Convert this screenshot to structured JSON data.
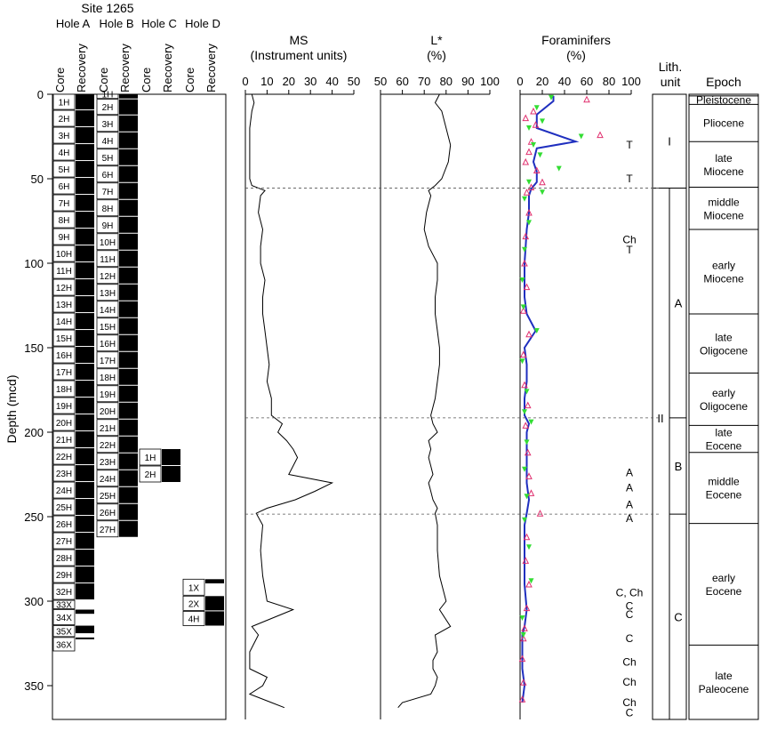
{
  "site_title": "Site 1265",
  "depth_axis": {
    "label": "Depth (mcd)",
    "ticks": [
      0,
      50,
      100,
      150,
      200,
      250,
      300,
      350
    ],
    "range": [
      0,
      370
    ]
  },
  "holes": [
    {
      "name": "Hole A",
      "core_label": "Core",
      "recovery_label": "Recovery",
      "cores": [
        {
          "id": "1H",
          "top": 0,
          "bot": 9.5,
          "rec": 9.5
        },
        {
          "id": "2H",
          "top": 9.5,
          "bot": 19.5,
          "rec": 10
        },
        {
          "id": "3H",
          "top": 19.5,
          "bot": 29.5,
          "rec": 10
        },
        {
          "id": "4H",
          "top": 29.5,
          "bot": 39.5,
          "rec": 10
        },
        {
          "id": "5H",
          "top": 39.5,
          "bot": 49.5,
          "rec": 10
        },
        {
          "id": "6H",
          "top": 49.5,
          "bot": 59.5,
          "rec": 10
        },
        {
          "id": "7H",
          "top": 59.5,
          "bot": 69.5,
          "rec": 10
        },
        {
          "id": "8H",
          "top": 69.5,
          "bot": 79.5,
          "rec": 10
        },
        {
          "id": "9H",
          "top": 79.5,
          "bot": 89.5,
          "rec": 10
        },
        {
          "id": "10H",
          "top": 89.5,
          "bot": 99.5,
          "rec": 10
        },
        {
          "id": "11H",
          "top": 99.5,
          "bot": 109.5,
          "rec": 10
        },
        {
          "id": "12H",
          "top": 109.5,
          "bot": 119.5,
          "rec": 10
        },
        {
          "id": "13H",
          "top": 119.5,
          "bot": 129.5,
          "rec": 10
        },
        {
          "id": "14H",
          "top": 129.5,
          "bot": 139.5,
          "rec": 10
        },
        {
          "id": "15H",
          "top": 139.5,
          "bot": 149.5,
          "rec": 10
        },
        {
          "id": "16H",
          "top": 149.5,
          "bot": 159.5,
          "rec": 10
        },
        {
          "id": "17H",
          "top": 159.5,
          "bot": 169.5,
          "rec": 10
        },
        {
          "id": "18H",
          "top": 169.5,
          "bot": 179.5,
          "rec": 10
        },
        {
          "id": "19H",
          "top": 179.5,
          "bot": 189.5,
          "rec": 10
        },
        {
          "id": "20H",
          "top": 189.5,
          "bot": 199.5,
          "rec": 10
        },
        {
          "id": "21H",
          "top": 199.5,
          "bot": 209.5,
          "rec": 10
        },
        {
          "id": "22H",
          "top": 209.5,
          "bot": 219.5,
          "rec": 10
        },
        {
          "id": "23H",
          "top": 219.5,
          "bot": 229.5,
          "rec": 10
        },
        {
          "id": "24H",
          "top": 229.5,
          "bot": 239.5,
          "rec": 10
        },
        {
          "id": "25H",
          "top": 239.5,
          "bot": 249.5,
          "rec": 10
        },
        {
          "id": "26H",
          "top": 249.5,
          "bot": 259.5,
          "rec": 10
        },
        {
          "id": "27H",
          "top": 259.5,
          "bot": 269.5,
          "rec": 10
        },
        {
          "id": "28H",
          "top": 269.5,
          "bot": 279.5,
          "rec": 10
        },
        {
          "id": "29H",
          "top": 279.5,
          "bot": 289.5,
          "rec": 10
        },
        {
          "id": "32H",
          "top": 289.5,
          "bot": 299.5,
          "rec": 10
        },
        {
          "id": "33X",
          "top": 299.5,
          "bot": 305,
          "rec": 0
        },
        {
          "id": "34X",
          "top": 305,
          "bot": 314.5,
          "rec": 3
        },
        {
          "id": "35X",
          "top": 314.5,
          "bot": 321.5,
          "rec": 5
        },
        {
          "id": "36X",
          "top": 321.5,
          "bot": 330,
          "rec": 1
        }
      ]
    },
    {
      "name": "Hole B",
      "core_label": "Core",
      "recovery_label": "Recovery",
      "cores": [
        {
          "id": "1H",
          "top": 0,
          "bot": 3,
          "rec": 3
        },
        {
          "id": "2H",
          "top": 3,
          "bot": 12.5,
          "rec": 9.5
        },
        {
          "id": "3H",
          "top": 12.5,
          "bot": 22.5,
          "rec": 10
        },
        {
          "id": "4H",
          "top": 22.5,
          "bot": 32.5,
          "rec": 10
        },
        {
          "id": "5H",
          "top": 32.5,
          "bot": 42.5,
          "rec": 10
        },
        {
          "id": "6H",
          "top": 42.5,
          "bot": 52.5,
          "rec": 10
        },
        {
          "id": "7H",
          "top": 52.5,
          "bot": 62.5,
          "rec": 10
        },
        {
          "id": "8H",
          "top": 62.5,
          "bot": 72.5,
          "rec": 10
        },
        {
          "id": "9H",
          "top": 72.5,
          "bot": 82.5,
          "rec": 10
        },
        {
          "id": "10H",
          "top": 82.5,
          "bot": 92.5,
          "rec": 10
        },
        {
          "id": "11H",
          "top": 92.5,
          "bot": 102.5,
          "rec": 10
        },
        {
          "id": "12H",
          "top": 102.5,
          "bot": 112.5,
          "rec": 10
        },
        {
          "id": "13H",
          "top": 112.5,
          "bot": 122.5,
          "rec": 10
        },
        {
          "id": "14H",
          "top": 122.5,
          "bot": 132.5,
          "rec": 10
        },
        {
          "id": "15H",
          "top": 132.5,
          "bot": 142.5,
          "rec": 10
        },
        {
          "id": "16H",
          "top": 142.5,
          "bot": 152.5,
          "rec": 10
        },
        {
          "id": "17H",
          "top": 152.5,
          "bot": 162.5,
          "rec": 10
        },
        {
          "id": "18H",
          "top": 162.5,
          "bot": 172.5,
          "rec": 10
        },
        {
          "id": "19H",
          "top": 172.5,
          "bot": 182.5,
          "rec": 10
        },
        {
          "id": "20H",
          "top": 182.5,
          "bot": 192.5,
          "rec": 10
        },
        {
          "id": "21H",
          "top": 192.5,
          "bot": 202.5,
          "rec": 10
        },
        {
          "id": "22H",
          "top": 202.5,
          "bot": 212.5,
          "rec": 10
        },
        {
          "id": "23H",
          "top": 212.5,
          "bot": 222.5,
          "rec": 10
        },
        {
          "id": "24H",
          "top": 222.5,
          "bot": 232.5,
          "rec": 10
        },
        {
          "id": "25H",
          "top": 232.5,
          "bot": 242.5,
          "rec": 10
        },
        {
          "id": "26H",
          "top": 242.5,
          "bot": 252.5,
          "rec": 10
        },
        {
          "id": "27H",
          "top": 252.5,
          "bot": 262.5,
          "rec": 10
        }
      ]
    },
    {
      "name": "Hole C",
      "core_label": "Core",
      "recovery_label": "Recovery",
      "cores": [
        {
          "id": "1H",
          "top": 210,
          "bot": 220,
          "rec": 10
        },
        {
          "id": "2H",
          "top": 220,
          "bot": 230,
          "rec": 10
        }
      ]
    },
    {
      "name": "Hole D",
      "core_label": "Core",
      "recovery_label": "Recovery",
      "cores": [
        {
          "id": "1X",
          "top": 287,
          "bot": 297,
          "rec": 3
        },
        {
          "id": "2X",
          "top": 297,
          "bot": 306,
          "rec": 9
        },
        {
          "id": "4H",
          "top": 306,
          "bot": 315,
          "rec": 9
        }
      ]
    }
  ],
  "ms_panel": {
    "title": "MS",
    "subtitle": "(Instrument units)",
    "ticks": [
      0,
      10,
      20,
      30,
      40,
      50
    ]
  },
  "lstar_panel": {
    "title": "L*",
    "subtitle": "(%)",
    "ticks": [
      50,
      60,
      70,
      80,
      90,
      100
    ]
  },
  "foram_panel": {
    "title": "Foraminifers",
    "subtitle": "(%)",
    "ticks": [
      0,
      20,
      40,
      60,
      80,
      100
    ]
  },
  "chart_data": {
    "type": "line",
    "y_label": "Depth (mcd)",
    "series": [
      {
        "name": "MS",
        "y": [
          0,
          5,
          10,
          20,
          30,
          40,
          50,
          54,
          57,
          60,
          70,
          80,
          90,
          100,
          110,
          120,
          130,
          140,
          150,
          160,
          170,
          180,
          190,
          195,
          200,
          205,
          210,
          215,
          220,
          225,
          230,
          235,
          240,
          245,
          248,
          255,
          270,
          285,
          300,
          305,
          315,
          320,
          330,
          335,
          340,
          345,
          350,
          355,
          360,
          363
        ],
        "x": [
          3,
          4,
          3,
          2,
          2,
          2,
          2,
          3,
          9,
          7,
          6,
          8,
          7,
          7,
          9,
          8,
          8,
          9,
          10,
          11,
          10,
          12,
          12,
          17,
          15,
          19,
          22,
          24,
          22,
          20,
          40,
          32,
          23,
          10,
          5,
          8,
          7,
          8,
          10,
          22,
          3,
          6,
          2,
          2,
          2,
          10,
          8,
          2,
          12,
          18
        ]
      },
      {
        "name": "L*",
        "y": [
          0,
          5,
          10,
          20,
          30,
          40,
          50,
          54,
          57,
          60,
          70,
          80,
          90,
          100,
          110,
          120,
          130,
          140,
          150,
          160,
          170,
          180,
          190,
          195,
          200,
          205,
          210,
          215,
          220,
          225,
          230,
          235,
          240,
          245,
          248,
          255,
          270,
          285,
          300,
          305,
          315,
          320,
          330,
          335,
          340,
          345,
          350,
          355,
          360,
          363
        ],
        "x": [
          77,
          75,
          78,
          80,
          82,
          81,
          78,
          75,
          72,
          73,
          71,
          70,
          72,
          76,
          76,
          75,
          75,
          76,
          77,
          77,
          76,
          75,
          73,
          74,
          76,
          72,
          73,
          72,
          73,
          74,
          72,
          73,
          74,
          76,
          75,
          76,
          76,
          77,
          80,
          77,
          82,
          75,
          76,
          74,
          74,
          76,
          75,
          73,
          60,
          58
        ]
      },
      {
        "name": "Total",
        "y": [
          1,
          4,
          12,
          20,
          28,
          32,
          40,
          46,
          52,
          56,
          60,
          70,
          80,
          90,
          100,
          110,
          120,
          130,
          140,
          150,
          160,
          170,
          180,
          190,
          195,
          200,
          210,
          220,
          230,
          240,
          248,
          255,
          270,
          290,
          305,
          315,
          320,
          330,
          340,
          350,
          360
        ],
        "x": [
          30,
          30,
          15,
          15,
          50,
          15,
          12,
          15,
          15,
          10,
          8,
          8,
          6,
          5,
          4,
          4,
          4,
          6,
          14,
          4,
          6,
          6,
          4,
          4,
          8,
          6,
          6,
          6,
          6,
          8,
          6,
          4,
          4,
          4,
          6,
          4,
          2,
          2,
          2,
          4,
          2
        ]
      }
    ],
    "markers": {
      "red_triangles": [
        [
          60,
          3
        ],
        [
          12,
          10
        ],
        [
          5,
          14
        ],
        [
          14,
          18
        ],
        [
          72,
          24
        ],
        [
          10,
          28
        ],
        [
          8,
          34
        ],
        [
          5,
          40
        ],
        [
          15,
          45
        ],
        [
          20,
          52
        ],
        [
          10,
          55
        ],
        [
          6,
          58
        ],
        [
          8,
          70
        ],
        [
          5,
          84
        ],
        [
          4,
          100
        ],
        [
          6,
          114
        ],
        [
          3,
          128
        ],
        [
          8,
          142
        ],
        [
          3,
          154
        ],
        [
          4,
          172
        ],
        [
          7,
          184
        ],
        [
          5,
          196
        ],
        [
          7,
          212
        ],
        [
          8,
          226
        ],
        [
          10,
          236
        ],
        [
          18,
          248
        ],
        [
          6,
          262
        ],
        [
          5,
          276
        ],
        [
          8,
          290
        ],
        [
          6,
          304
        ],
        [
          4,
          316
        ],
        [
          3,
          322
        ],
        [
          2,
          334
        ],
        [
          3,
          348
        ],
        [
          2,
          358
        ]
      ],
      "green_triangles": [
        [
          28,
          2
        ],
        [
          15,
          8
        ],
        [
          20,
          16
        ],
        [
          8,
          20
        ],
        [
          55,
          25
        ],
        [
          12,
          30
        ],
        [
          18,
          36
        ],
        [
          35,
          44
        ],
        [
          8,
          52
        ],
        [
          20,
          58
        ],
        [
          4,
          62
        ],
        [
          8,
          76
        ],
        [
          4,
          92
        ],
        [
          2,
          110
        ],
        [
          3,
          126
        ],
        [
          15,
          140
        ],
        [
          2,
          158
        ],
        [
          6,
          176
        ],
        [
          4,
          188
        ],
        [
          10,
          194
        ],
        [
          6,
          206
        ],
        [
          4,
          222
        ],
        [
          6,
          238
        ],
        [
          4,
          252
        ],
        [
          8,
          268
        ],
        [
          10,
          288
        ],
        [
          2,
          310
        ],
        [
          3,
          320
        ]
      ]
    },
    "annotations": [
      {
        "text": "T",
        "depth": 30
      },
      {
        "text": "T",
        "depth": 50
      },
      {
        "text": "Ch",
        "depth": 86
      },
      {
        "text": "T",
        "depth": 92
      },
      {
        "text": "A",
        "depth": 224
      },
      {
        "text": "A",
        "depth": 233
      },
      {
        "text": "A",
        "depth": 243
      },
      {
        "text": "A",
        "depth": 251
      },
      {
        "text": "C, Ch",
        "depth": 295
      },
      {
        "text": "C",
        "depth": 303
      },
      {
        "text": "C",
        "depth": 308
      },
      {
        "text": "C",
        "depth": 322
      },
      {
        "text": "Ch",
        "depth": 336
      },
      {
        "text": "Ch",
        "depth": 348
      },
      {
        "text": "Ch",
        "depth": 360
      },
      {
        "text": "C",
        "depth": 366
      }
    ],
    "boundaries": [
      55.5,
      191.5,
      248.5
    ]
  },
  "lith_unit": {
    "title_line1": "Lith.",
    "title_line2": "unit",
    "units": [
      {
        "label": "I",
        "top": 0,
        "bot": 55.5
      },
      {
        "label": "II",
        "top": 55.5,
        "bot": 370
      },
      {
        "label": "A",
        "top": 55.5,
        "bot": 191.5
      },
      {
        "label": "B",
        "top": 191.5,
        "bot": 248.5
      },
      {
        "label": "C",
        "top": 248.5,
        "bot": 370
      }
    ]
  },
  "epoch": {
    "title": "Epoch",
    "items": [
      {
        "label1": "Pleistocene",
        "label2": "",
        "top": 1,
        "bot": 6
      },
      {
        "label1": "Pliocene",
        "label2": "",
        "top": 6,
        "bot": 28
      },
      {
        "label1": "late",
        "label2": "Miocene",
        "top": 28,
        "bot": 55
      },
      {
        "label1": "middle",
        "label2": "Miocene",
        "top": 55,
        "bot": 80
      },
      {
        "label1": "early",
        "label2": "Miocene",
        "top": 80,
        "bot": 130
      },
      {
        "label1": "late",
        "label2": "Oligocene",
        "top": 130,
        "bot": 165
      },
      {
        "label1": "early",
        "label2": "Oligocene",
        "top": 165,
        "bot": 196
      },
      {
        "label1": "late",
        "label2": "Eocene",
        "top": 196,
        "bot": 212
      },
      {
        "label1": "middle",
        "label2": "Eocene",
        "top": 212,
        "bot": 254
      },
      {
        "label1": "early",
        "label2": "Eocene",
        "top": 254,
        "bot": 326
      },
      {
        "label1": "late",
        "label2": "Paleocene",
        "top": 326,
        "bot": 370
      }
    ]
  }
}
